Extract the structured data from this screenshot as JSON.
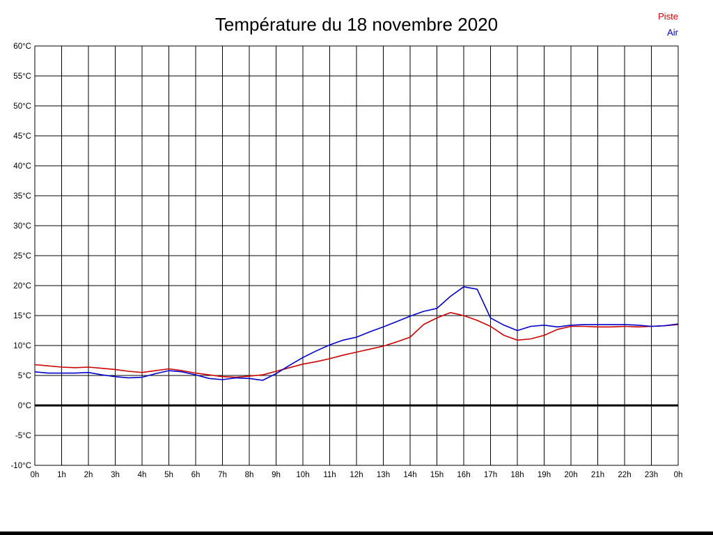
{
  "title": "Température du 18 novembre 2020",
  "legend": {
    "piste": {
      "label": "Piste",
      "color": "#cc0000"
    },
    "air": {
      "label": "Air",
      "color": "#0000cc"
    }
  },
  "chart_data": {
    "type": "line",
    "title": "Température du 18 novembre 2020",
    "xlabel": "",
    "ylabel": "°C",
    "ylim": [
      -10,
      60
    ],
    "y_tick_step": 5,
    "y_tick_suffix": "°C",
    "x_tick_labels": [
      "0h",
      "1h",
      "2h",
      "3h",
      "4h",
      "5h",
      "6h",
      "7h",
      "8h",
      "9h",
      "10h",
      "11h",
      "12h",
      "13h",
      "14h",
      "15h",
      "16h",
      "17h",
      "18h",
      "19h",
      "20h",
      "21h",
      "22h",
      "23h",
      "0h"
    ],
    "x_range_hours": [
      0,
      24
    ],
    "grid": true,
    "grid_color": "#000000",
    "zero_line": true,
    "zero_line_color": "#000000",
    "legend_position": "top-right",
    "series": [
      {
        "name": "Piste",
        "color": "#cc0000",
        "x": [
          0,
          0.5,
          1,
          1.5,
          2,
          2.5,
          3,
          3.5,
          4,
          4.5,
          5,
          5.5,
          6,
          6.5,
          7,
          7.5,
          8,
          8.5,
          9,
          9.5,
          10,
          10.5,
          11,
          11.5,
          12,
          12.5,
          13,
          13.5,
          14,
          14.5,
          15,
          15.5,
          16,
          16.5,
          17,
          17.5,
          18,
          18.5,
          19,
          19.5,
          20,
          20.5,
          21,
          21.5,
          22,
          22.5,
          23,
          23.5,
          24
        ],
        "values": [
          6.8,
          6.6,
          6.4,
          6.3,
          6.4,
          6.2,
          6.0,
          5.7,
          5.5,
          5.8,
          6.1,
          5.8,
          5.4,
          5.1,
          4.8,
          4.7,
          4.9,
          5.1,
          5.7,
          6.3,
          6.9,
          7.3,
          7.8,
          8.4,
          8.9,
          9.4,
          9.9,
          10.6,
          11.4,
          13.5,
          14.6,
          15.5,
          15.0,
          14.2,
          13.2,
          11.7,
          10.9,
          11.1,
          11.7,
          12.7,
          13.2,
          13.2,
          13.1,
          13.1,
          13.2,
          13.1,
          13.2,
          13.3,
          13.5
        ]
      },
      {
        "name": "Air",
        "color": "#0000cc",
        "x": [
          0,
          0.5,
          1,
          1.5,
          2,
          2.5,
          3,
          3.5,
          4,
          4.5,
          5,
          5.5,
          6,
          6.5,
          7,
          7.5,
          8,
          8.5,
          9,
          9.5,
          10,
          10.5,
          11,
          11.5,
          12,
          12.5,
          13,
          13.5,
          14,
          14.5,
          15,
          15.5,
          16,
          16.5,
          17,
          17.5,
          18,
          18.5,
          19,
          19.5,
          20,
          20.5,
          21,
          21.5,
          22,
          22.5,
          23,
          23.5,
          24
        ],
        "values": [
          5.6,
          5.4,
          5.4,
          5.4,
          5.5,
          5.1,
          4.8,
          4.6,
          4.7,
          5.3,
          5.8,
          5.6,
          5.1,
          4.5,
          4.3,
          4.6,
          4.5,
          4.2,
          5.3,
          6.7,
          8.0,
          9.1,
          10.1,
          10.9,
          11.4,
          12.3,
          13.1,
          14.0,
          14.9,
          15.7,
          16.2,
          18.2,
          19.8,
          19.4,
          14.6,
          13.4,
          12.5,
          13.2,
          13.4,
          13.1,
          13.4,
          13.5,
          13.5,
          13.5,
          13.5,
          13.4,
          13.2,
          13.3,
          13.6
        ]
      }
    ]
  }
}
